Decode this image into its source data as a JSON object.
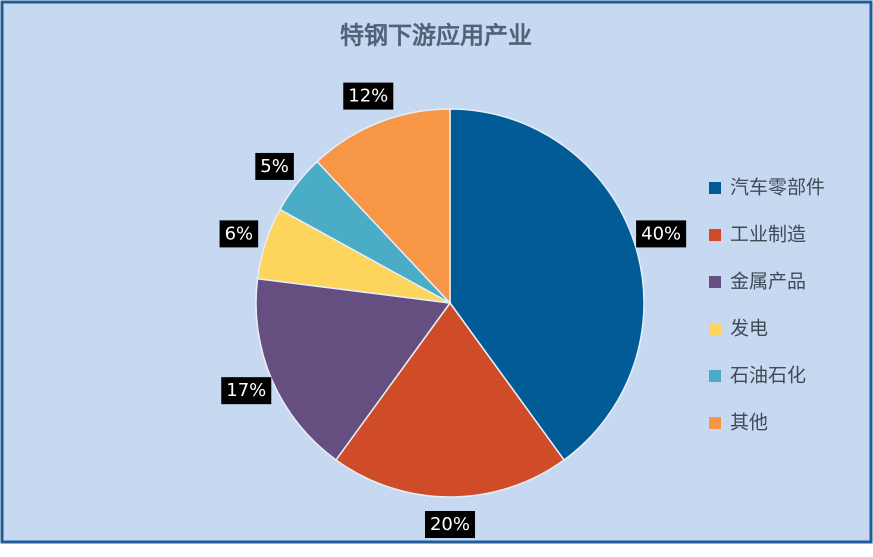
{
  "chart_data": {
    "type": "pie",
    "title": "特钢下游应用产业",
    "categories": [
      "汽车零部件",
      "工业制造",
      "金属产品",
      "发电",
      "石油石化",
      "其他"
    ],
    "values": [
      40,
      20,
      17,
      6,
      5,
      12
    ],
    "value_labels": [
      "40%",
      "20%",
      "17%",
      "6%",
      "5%",
      "12%"
    ],
    "colors": [
      "#005b96",
      "#d04b27",
      "#654f80",
      "#fdd55c",
      "#4aacc6",
      "#f79646"
    ],
    "legend": "right"
  }
}
